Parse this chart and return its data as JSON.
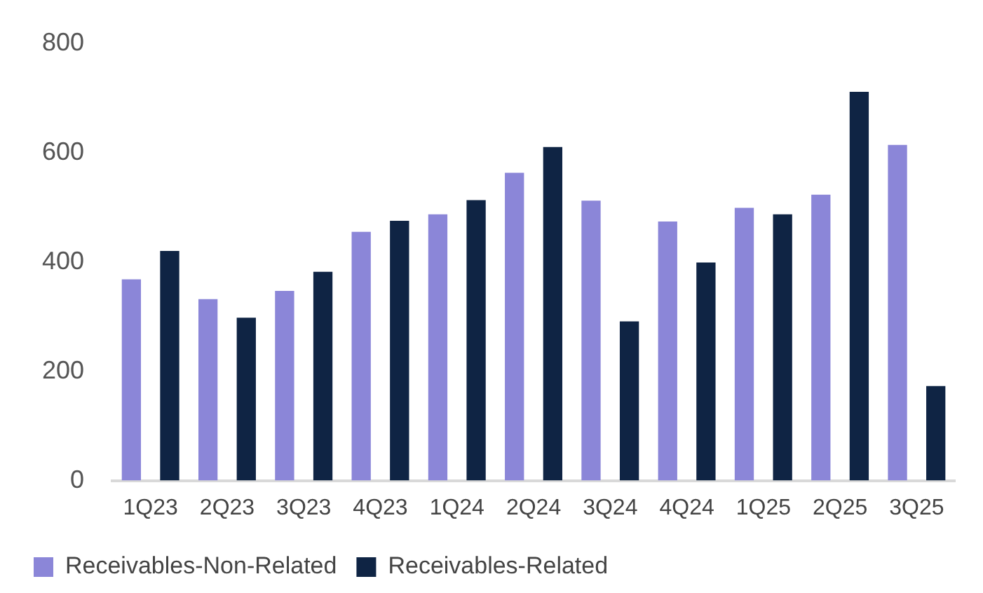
{
  "chart_data": {
    "type": "bar",
    "categories": [
      "1Q23",
      "2Q23",
      "3Q23",
      "4Q23",
      "1Q24",
      "2Q24",
      "3Q24",
      "4Q24",
      "1Q25",
      "2Q25",
      "3Q25"
    ],
    "series": [
      {
        "name": "Receivables-Non-Related",
        "color": "#8b86d8",
        "values": [
          368,
          332,
          347,
          455,
          487,
          563,
          512,
          474,
          499,
          523,
          614
        ]
      },
      {
        "name": "Receivables-Related",
        "color": "#0f2444",
        "values": [
          420,
          298,
          382,
          475,
          513,
          610,
          291,
          399,
          487,
          711,
          173
        ]
      }
    ],
    "ylim": [
      0,
      800
    ],
    "yticks": [
      0,
      200,
      400,
      600,
      800
    ],
    "grid": false,
    "legend": "bottom"
  }
}
